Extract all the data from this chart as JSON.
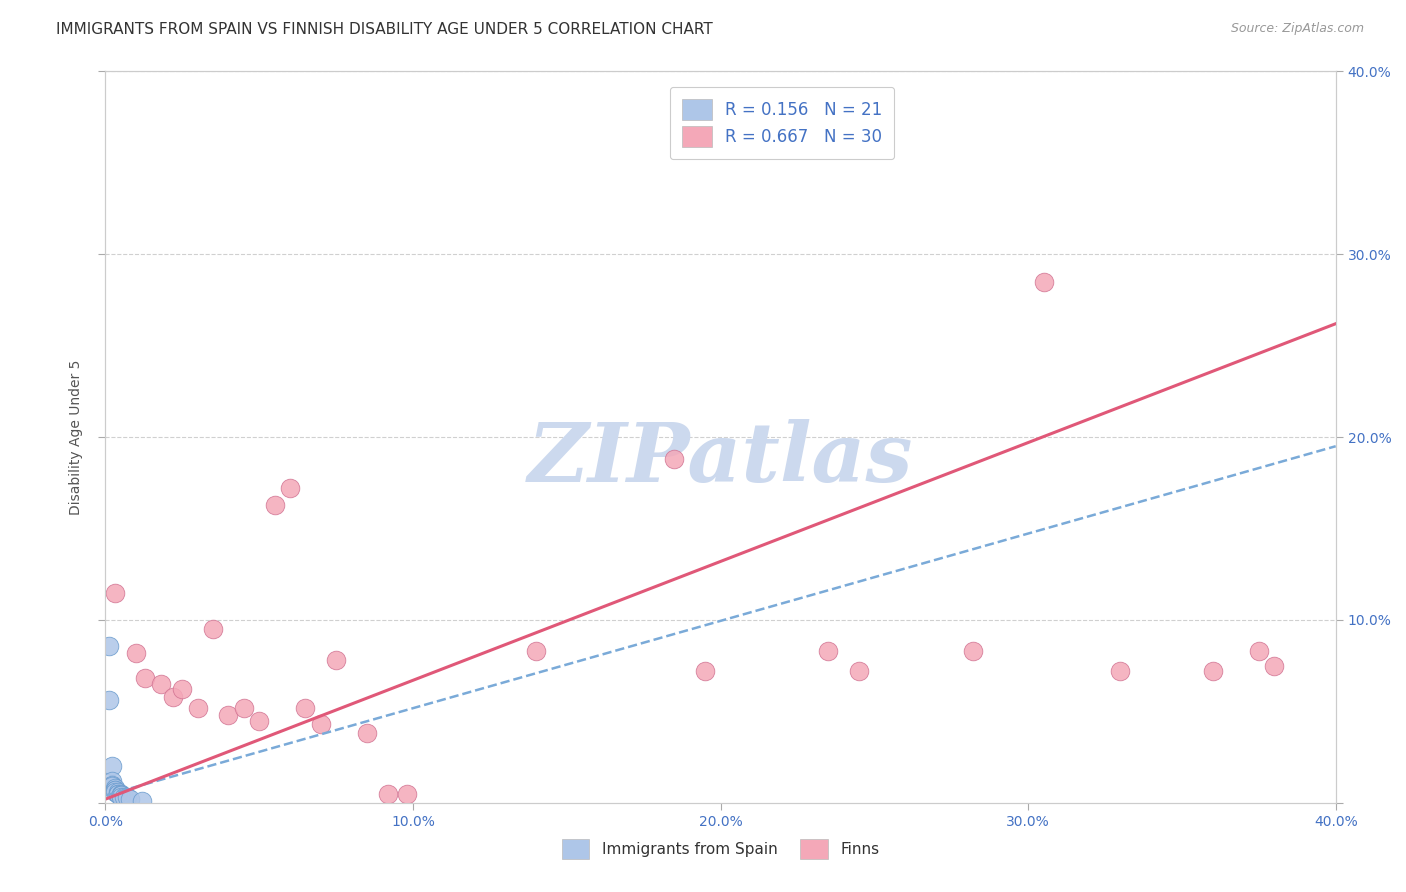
{
  "title": "IMMIGRANTS FROM SPAIN VS FINNISH DISABILITY AGE UNDER 5 CORRELATION CHART",
  "source": "Source: ZipAtlas.com",
  "ylabel_label": "Disability Age Under 5",
  "xlim": [
    0.0,
    0.4
  ],
  "ylim": [
    0.0,
    0.4
  ],
  "xtick_vals": [
    0.0,
    0.1,
    0.2,
    0.3,
    0.4
  ],
  "ytick_vals": [
    0.0,
    0.1,
    0.2,
    0.3,
    0.4
  ],
  "xtick_labels": [
    "0.0%",
    "10.0%",
    "20.0%",
    "30.0%",
    "40.0%"
  ],
  "right_ytick_labels": [
    "",
    "10.0%",
    "20.0%",
    "30.0%",
    "40.0%"
  ],
  "legend_entries": [
    {
      "label": "R = 0.156   N = 21",
      "color": "#aec6e8"
    },
    {
      "label": "R = 0.667   N = 30",
      "color": "#f4a8b8"
    }
  ],
  "legend_bottom_entries": [
    {
      "label": "Immigrants from Spain",
      "color": "#aec6e8"
    },
    {
      "label": "Finns",
      "color": "#f4a8b8"
    }
  ],
  "blue_points": [
    [
      0.001,
      0.086
    ],
    [
      0.001,
      0.056
    ],
    [
      0.002,
      0.02
    ],
    [
      0.002,
      0.012
    ],
    [
      0.002,
      0.01
    ],
    [
      0.002,
      0.009
    ],
    [
      0.003,
      0.008
    ],
    [
      0.003,
      0.007
    ],
    [
      0.003,
      0.007
    ],
    [
      0.003,
      0.006
    ],
    [
      0.004,
      0.006
    ],
    [
      0.004,
      0.005
    ],
    [
      0.004,
      0.005
    ],
    [
      0.005,
      0.005
    ],
    [
      0.005,
      0.004
    ],
    [
      0.005,
      0.004
    ],
    [
      0.005,
      0.003
    ],
    [
      0.006,
      0.003
    ],
    [
      0.007,
      0.003
    ],
    [
      0.008,
      0.002
    ],
    [
      0.012,
      0.001
    ]
  ],
  "pink_points": [
    [
      0.003,
      0.115
    ],
    [
      0.01,
      0.082
    ],
    [
      0.013,
      0.068
    ],
    [
      0.018,
      0.065
    ],
    [
      0.022,
      0.058
    ],
    [
      0.025,
      0.062
    ],
    [
      0.03,
      0.052
    ],
    [
      0.035,
      0.095
    ],
    [
      0.04,
      0.048
    ],
    [
      0.045,
      0.052
    ],
    [
      0.05,
      0.045
    ],
    [
      0.055,
      0.163
    ],
    [
      0.06,
      0.172
    ],
    [
      0.065,
      0.052
    ],
    [
      0.07,
      0.043
    ],
    [
      0.075,
      0.078
    ],
    [
      0.085,
      0.038
    ],
    [
      0.092,
      0.005
    ],
    [
      0.098,
      0.005
    ],
    [
      0.14,
      0.083
    ],
    [
      0.185,
      0.188
    ],
    [
      0.195,
      0.072
    ],
    [
      0.235,
      0.083
    ],
    [
      0.245,
      0.072
    ],
    [
      0.282,
      0.083
    ],
    [
      0.305,
      0.285
    ],
    [
      0.33,
      0.072
    ],
    [
      0.36,
      0.072
    ],
    [
      0.375,
      0.083
    ],
    [
      0.38,
      0.075
    ]
  ],
  "blue_line_x": [
    0.0,
    0.4
  ],
  "blue_line_y": [
    0.004,
    0.195
  ],
  "pink_line_x": [
    0.0,
    0.4
  ],
  "pink_line_y": [
    0.002,
    0.262
  ],
  "watermark": "ZIPatlas",
  "background_color": "#ffffff",
  "grid_color": "#d0d0d0",
  "title_fontsize": 11,
  "axis_label_fontsize": 10,
  "tick_fontsize": 10,
  "tick_color": "#4472c4",
  "watermark_color": "#ccd9ee"
}
